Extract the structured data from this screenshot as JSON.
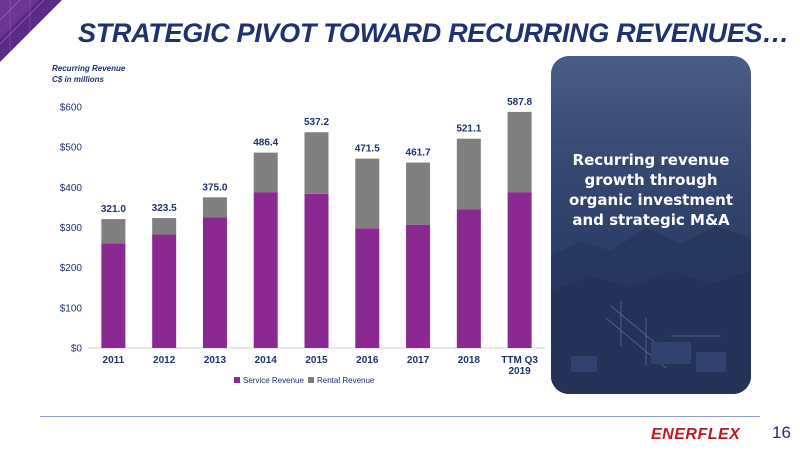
{
  "slide": {
    "title": "STRATEGIC PIVOT TOWARD RECURRING REVENUES…",
    "page_number": "16",
    "logo_text": "ENERFLEX",
    "callout_text": "Recurring revenue growth through organic investment and strategic M&A"
  },
  "colors": {
    "title": "#1f3170",
    "service": "#8b2891",
    "rental": "#7f7f7f",
    "accent_purple": "#5b2a86",
    "logo_red": "#c0181e"
  },
  "chart_data": {
    "type": "bar",
    "stacked": true,
    "title": "",
    "ylabel_line1": "Recurring Revenue",
    "ylabel_line2": "C$ in millions",
    "categories": [
      "2011",
      "2012",
      "2013",
      "2014",
      "2015",
      "2016",
      "2017",
      "2018",
      "TTM Q3 2019"
    ],
    "totals": [
      321.0,
      323.5,
      375.0,
      486.4,
      537.2,
      471.5,
      461.7,
      521.1,
      587.8
    ],
    "total_labels": [
      "321.0",
      "323.5",
      "375.0",
      "486.4",
      "537.2",
      "471.5",
      "461.7",
      "521.1",
      "587.8"
    ],
    "series": [
      {
        "name": "Service Revenue",
        "values": [
          260,
          283,
          325,
          388,
          384,
          298,
          307,
          345,
          388
        ]
      },
      {
        "name": "Rental Revenue",
        "values": [
          61,
          40.5,
          50,
          98.4,
          153.2,
          173.5,
          154.7,
          176.1,
          199.8
        ]
      }
    ],
    "ylim": [
      0,
      600
    ],
    "yticks": [
      0,
      100,
      200,
      300,
      400,
      500,
      600
    ],
    "ytick_labels": [
      "$0",
      "$100",
      "$200",
      "$300",
      "$400",
      "$500",
      "$600"
    ],
    "grid": false,
    "legend_position": "bottom"
  }
}
